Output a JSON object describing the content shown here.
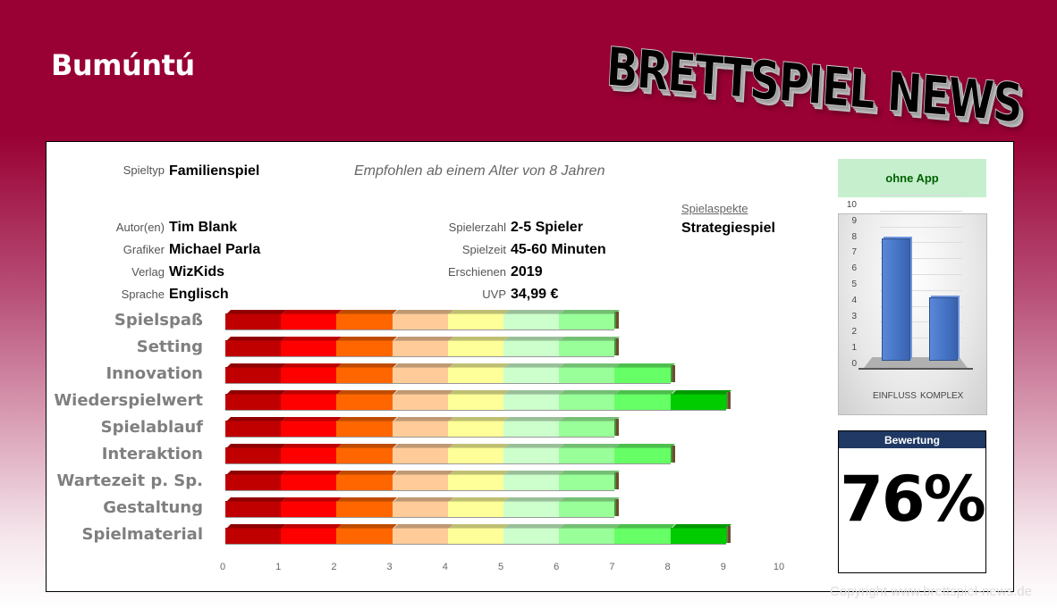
{
  "header": {
    "title": "Bumúntú",
    "logo_text": "BRETTSPIEL NEWS"
  },
  "info": {
    "spieltyp_label": "Spieltyp",
    "spieltyp": "Familienspiel",
    "age_note": "Empfohlen ab einem Alter von 8 Jahren",
    "left": [
      {
        "label": "Autor(en)",
        "value": "Tim Blank"
      },
      {
        "label": "Grafiker",
        "value": "Michael Parla"
      },
      {
        "label": "Verlag",
        "value": "WizKids"
      },
      {
        "label": "Sprache",
        "value": "Englisch"
      }
    ],
    "right": [
      {
        "label": "Spielerzahl",
        "value": "2-5 Spieler"
      },
      {
        "label": "Spielzeit",
        "value": "45-60 Minuten"
      },
      {
        "label": "Erschienen",
        "value": "2019"
      },
      {
        "label": "UVP",
        "value": "34,99 €"
      }
    ],
    "aspects_label": "Spielaspekte",
    "aspects_value": "Strategiespiel"
  },
  "app_badge": {
    "label": "ohne App",
    "bg": "#c6efce",
    "color": "#006100"
  },
  "rating": {
    "header": "Bewertung",
    "value": "76%",
    "header_bg": "#1f3864"
  },
  "segment_colors": [
    "#c00000",
    "#ff0000",
    "#ff6600",
    "#ffcc99",
    "#ffff99",
    "#ccffcc",
    "#99ff99",
    "#66ff66",
    "#00cc00",
    "#009900"
  ],
  "chart_data": [
    {
      "type": "bar",
      "orientation": "horizontal",
      "title": "",
      "categories": [
        "Spielspaß",
        "Setting",
        "Innovation",
        "Wiederspielwert",
        "Spielablauf",
        "Interaktion",
        "Wartezeit p. Sp.",
        "Gestaltung",
        "Spielmaterial"
      ],
      "values": [
        7,
        7,
        8,
        9,
        7,
        8,
        7,
        7,
        9
      ],
      "xlim": [
        0,
        10
      ],
      "xticks": [
        "0",
        "1",
        "2",
        "3",
        "4",
        "5",
        "6",
        "7",
        "8",
        "9",
        "10"
      ],
      "xlabel": "",
      "ylabel": "",
      "grid": false,
      "style": "3D stacked color segments, one unit per segment"
    },
    {
      "type": "bar",
      "title": "",
      "categories": [
        "EINFLUSS",
        "KOMPLEX"
      ],
      "values": [
        7.7,
        4
      ],
      "ylim": [
        0,
        10
      ],
      "yticks": [
        "0",
        "1",
        "2",
        "3",
        "4",
        "5",
        "6",
        "7",
        "8",
        "9",
        "10"
      ],
      "color": "#4472c4",
      "grid": true,
      "legend": "none"
    }
  ],
  "footer": {
    "copyright": "Copyright www.brettspiel-news.de"
  }
}
